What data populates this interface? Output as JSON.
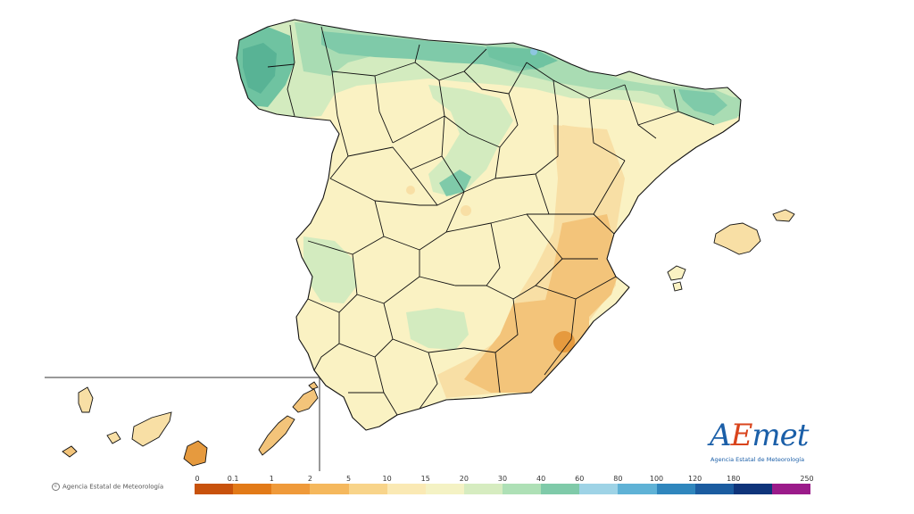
{
  "legend": {
    "ticks": [
      "0",
      "0.1",
      "1",
      "2",
      "5",
      "10",
      "15",
      "20",
      "30",
      "40",
      "60",
      "80",
      "100",
      "120",
      "180",
      "250"
    ],
    "colors": [
      "#c8520c",
      "#e27a18",
      "#ef9a3a",
      "#f5b85d",
      "#f8d48a",
      "#fae9b4",
      "#f4f2c4",
      "#d6ecc0",
      "#aee0b6",
      "#7fcaa9",
      "#9ed3e6",
      "#5fb2d6",
      "#2f86bd",
      "#1b5ca0",
      "#0f347a",
      "#9b1b8a"
    ]
  },
  "map": {
    "colors": {
      "dry_dark": "#e69a3e",
      "dry": "#f3c47a",
      "dry_light": "#f8dfa5",
      "neutral": "#faf2c3",
      "wet_light": "#d3ebbf",
      "wet": "#a9dcb3",
      "wet_dark": "#6fc3a1",
      "wettest": "#58b395",
      "blue_spot": "#8ec6e0",
      "border": "#111111"
    }
  },
  "copyright": "Agencia Estatal de Meteorología",
  "logo": {
    "text_a": "A",
    "text_e": "E",
    "text_rest": "met",
    "subtitle": "Agencia Estatal de Meteorología"
  }
}
